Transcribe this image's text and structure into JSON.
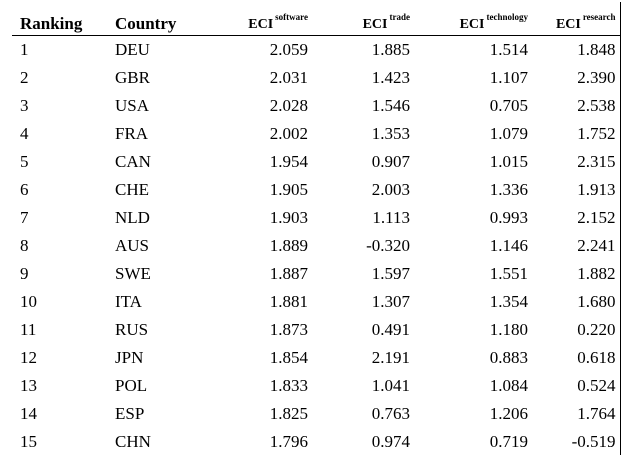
{
  "table": {
    "headers": {
      "ranking": "Ranking",
      "country": "Country",
      "eci_prefix": "ECI",
      "software": "software",
      "trade": "trade",
      "technology": "technology",
      "research": "research"
    },
    "rows": [
      {
        "rank": "1",
        "country": "DEU",
        "software": "2.059",
        "trade": "1.885",
        "technology": "1.514",
        "research": "1.848"
      },
      {
        "rank": "2",
        "country": "GBR",
        "software": "2.031",
        "trade": "1.423",
        "technology": "1.107",
        "research": "2.390"
      },
      {
        "rank": "3",
        "country": "USA",
        "software": "2.028",
        "trade": "1.546",
        "technology": "0.705",
        "research": "2.538"
      },
      {
        "rank": "4",
        "country": "FRA",
        "software": "2.002",
        "trade": "1.353",
        "technology": "1.079",
        "research": "1.752"
      },
      {
        "rank": "5",
        "country": "CAN",
        "software": "1.954",
        "trade": "0.907",
        "technology": "1.015",
        "research": "2.315"
      },
      {
        "rank": "6",
        "country": "CHE",
        "software": "1.905",
        "trade": "2.003",
        "technology": "1.336",
        "research": "1.913"
      },
      {
        "rank": "7",
        "country": "NLD",
        "software": "1.903",
        "trade": "1.113",
        "technology": "0.993",
        "research": "2.152"
      },
      {
        "rank": "8",
        "country": "AUS",
        "software": "1.889",
        "trade": "-0.320",
        "technology": "1.146",
        "research": "2.241"
      },
      {
        "rank": "9",
        "country": "SWE",
        "software": "1.887",
        "trade": "1.597",
        "technology": "1.551",
        "research": "1.882"
      },
      {
        "rank": "10",
        "country": "ITA",
        "software": "1.881",
        "trade": "1.307",
        "technology": "1.354",
        "research": "1.680"
      },
      {
        "rank": "11",
        "country": "RUS",
        "software": "1.873",
        "trade": "0.491",
        "technology": "1.180",
        "research": "0.220"
      },
      {
        "rank": "12",
        "country": "JPN",
        "software": "1.854",
        "trade": "2.191",
        "technology": "0.883",
        "research": "0.618"
      },
      {
        "rank": "13",
        "country": "POL",
        "software": "1.833",
        "trade": "1.041",
        "technology": "1.084",
        "research": "0.524"
      },
      {
        "rank": "14",
        "country": "ESP",
        "software": "1.825",
        "trade": "0.763",
        "technology": "1.206",
        "research": "1.764"
      },
      {
        "rank": "15",
        "country": "CHN",
        "software": "1.796",
        "trade": "0.974",
        "technology": "0.719",
        "research": "-0.519"
      }
    ]
  }
}
